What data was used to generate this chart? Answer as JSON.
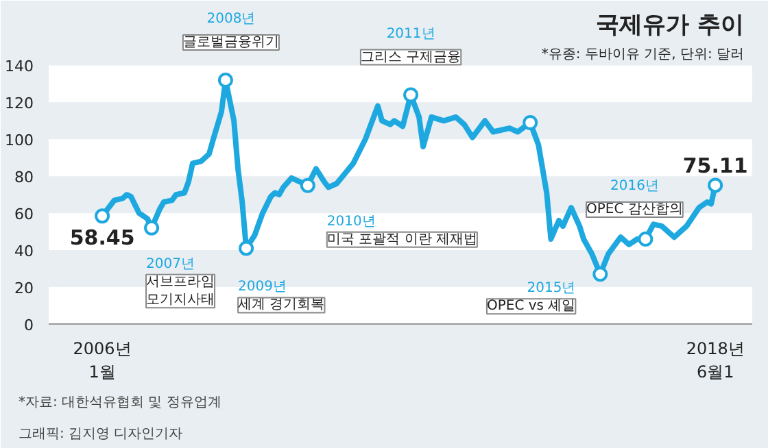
{
  "chart_data": {
    "type": "line",
    "title": "국제유가 추이",
    "subtitle": "*유종: 두바이유 기준, 단위: 달러",
    "x": [
      "2006-01",
      "2006-04",
      "2006-06",
      "2006-07",
      "2006-08",
      "2006-10",
      "2006-12",
      "2007-01",
      "2007-03",
      "2007-04",
      "2007-06",
      "2007-07",
      "2007-09",
      "2007-10",
      "2007-11",
      "2008-01",
      "2008-03",
      "2008-04",
      "2008-06",
      "2008-07",
      "2008-09",
      "2008-10",
      "2008-11",
      "2008-12",
      "2009-02",
      "2009-04",
      "2009-06",
      "2009-07",
      "2009-08",
      "2009-09",
      "2009-11",
      "2010-01",
      "2010-03",
      "2010-05",
      "2010-07",
      "2010-08",
      "2010-10",
      "2011-02",
      "2011-05",
      "2011-08",
      "2011-09",
      "2011-11",
      "2011-12",
      "2012-02",
      "2012-04",
      "2012-06",
      "2012-07",
      "2012-09",
      "2012-12",
      "2013-03",
      "2013-05",
      "2013-07",
      "2013-10",
      "2013-12",
      "2014-04",
      "2014-06",
      "2014-09",
      "2014-11",
      "2015-01",
      "2015-02",
      "2015-04",
      "2015-05",
      "2015-07",
      "2015-09",
      "2015-10",
      "2015-12",
      "2016-02",
      "2016-04",
      "2016-07",
      "2016-09",
      "2016-11",
      "2017-01",
      "2017-03",
      "2017-05",
      "2017-08",
      "2017-11",
      "2018-02",
      "2018-04",
      "2018-05",
      "2018-06"
    ],
    "series": [
      {
        "color": "#1ea8e0",
        "values": [
          58.45,
          67,
          68,
          70,
          69,
          60,
          57,
          52,
          62,
          66,
          67,
          70,
          71,
          77,
          87,
          88,
          92,
          100,
          115,
          132,
          110,
          84,
          66,
          41,
          48,
          60,
          69,
          71,
          70,
          74,
          79,
          77,
          75,
          84,
          77,
          74,
          76,
          87,
          100,
          118,
          110,
          108,
          110,
          107,
          124,
          112,
          96,
          112,
          110,
          112,
          108,
          101,
          110,
          104,
          106,
          104,
          109,
          97,
          71,
          46,
          56,
          53,
          63,
          53,
          46,
          38,
          27,
          38,
          47,
          43,
          46,
          46,
          54,
          53,
          47,
          53,
          63,
          66,
          65,
          75.11
        ]
      },
      {
        "type": "scatter",
        "marker": "circle",
        "color": "#1ea8e0",
        "x": [
          "2006-01",
          "2007-01",
          "2008-07",
          "2008-12",
          "2010-03",
          "2012-04",
          "2014-09",
          "2016-02",
          "2017-01",
          "2018-06"
        ],
        "values": [
          58.45,
          52,
          132,
          41,
          75,
          124,
          109,
          27,
          46,
          75.11
        ],
        "value_labels": [
          "58.45",
          null,
          null,
          null,
          null,
          null,
          null,
          null,
          null,
          "75.11"
        ]
      }
    ],
    "xlim": [
      "2004-12",
      "2019-03"
    ],
    "xticks": [
      {
        "value": "2006-01",
        "label": "2006년\n1월"
      },
      {
        "value": "2018-06",
        "label": "2018년\n6월1"
      }
    ],
    "ylim": [
      0,
      175
    ],
    "yticks": [
      0,
      20,
      40,
      60,
      80,
      100,
      120,
      140
    ],
    "bands": [
      {
        "axis": "y",
        "from": 0,
        "to": 20,
        "color": "#ffffff"
      },
      {
        "axis": "y",
        "from": 40,
        "to": 60,
        "color": "#ffffff"
      },
      {
        "axis": "y",
        "from": 80,
        "to": 100,
        "color": "#ffffff"
      },
      {
        "axis": "y",
        "from": 120,
        "to": 140,
        "color": "#ffffff"
      }
    ],
    "annotations": [
      {
        "text": "2007년\n서브프라임\n모기지사태",
        "x": "2007-01",
        "y": 52
      },
      {
        "text": "2008년\n글로벌금융위기",
        "x": "2008-07",
        "y": 132
      },
      {
        "text": "2009년\n세계 경기회복",
        "x": "2008-12",
        "y": 41
      },
      {
        "text": "2010년\n미국 포괄적 이란 제재법",
        "x": "2010-03",
        "y": 75
      },
      {
        "text": "2011년\n그리스 구제금융",
        "x": "2012-04",
        "y": 124
      },
      {
        "text": "2015년\nOPEC vs 셰일",
        "x": "2016-02",
        "y": 27
      },
      {
        "text": "2016년\nOPEC 감산합의",
        "x": "2017-01",
        "y": 46
      },
      "*자료: 대한석유협회 및 정유업계",
      "그래픽: 김지영 디자인기자"
    ]
  }
}
